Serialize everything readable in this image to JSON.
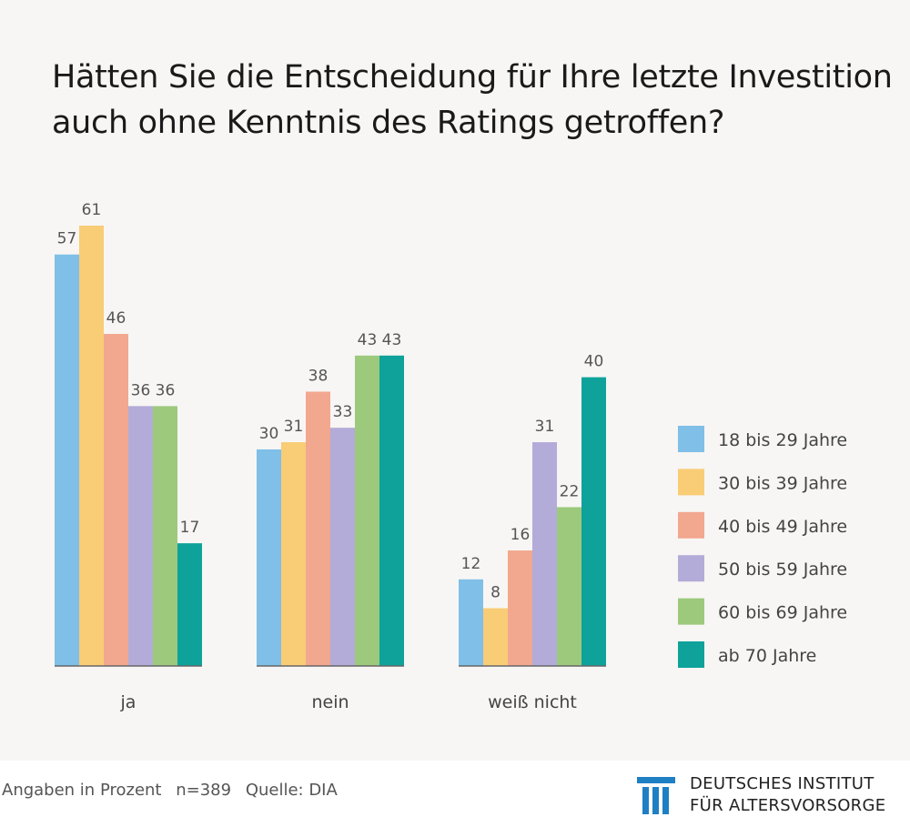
{
  "title_lines": [
    "Hätten Sie die Entscheidung für Ihre letzte Investition",
    "auch ohne Kenntnis des Ratings getroffen?"
  ],
  "chart_data": {
    "type": "bar",
    "categories": [
      "ja",
      "nein",
      "weiß nicht"
    ],
    "series": [
      {
        "name": "18 bis 29 Jahre",
        "color": "#7fbfe8",
        "values": [
          57,
          30,
          12
        ]
      },
      {
        "name": "30 bis 39 Jahre",
        "color": "#f9cc76",
        "values": [
          61,
          31,
          8
        ]
      },
      {
        "name": "40 bis 49 Jahre",
        "color": "#f2a78f",
        "values": [
          46,
          38,
          16
        ]
      },
      {
        "name": "50 bis 59 Jahre",
        "color": "#b3abd8",
        "values": [
          36,
          33,
          31
        ]
      },
      {
        "name": "60 bis 69 Jahre",
        "color": "#9dc97d",
        "values": [
          36,
          43,
          22
        ]
      },
      {
        "name": "ab 70 Jahre",
        "color": "#0ea29a",
        "values": [
          17,
          43,
          40
        ]
      }
    ],
    "ylim": [
      0,
      61
    ],
    "grid": false,
    "legend_position": "right",
    "unit": "Prozent"
  },
  "footer": {
    "note_parts": [
      "Angaben in Prozent",
      "n=389",
      "Quelle: DIA"
    ],
    "logo_line1": "DEUTSCHES INSTITUT",
    "logo_line2": "FÜR ALTERSVORSORGE",
    "logo_color": "#1f7fc4"
  }
}
